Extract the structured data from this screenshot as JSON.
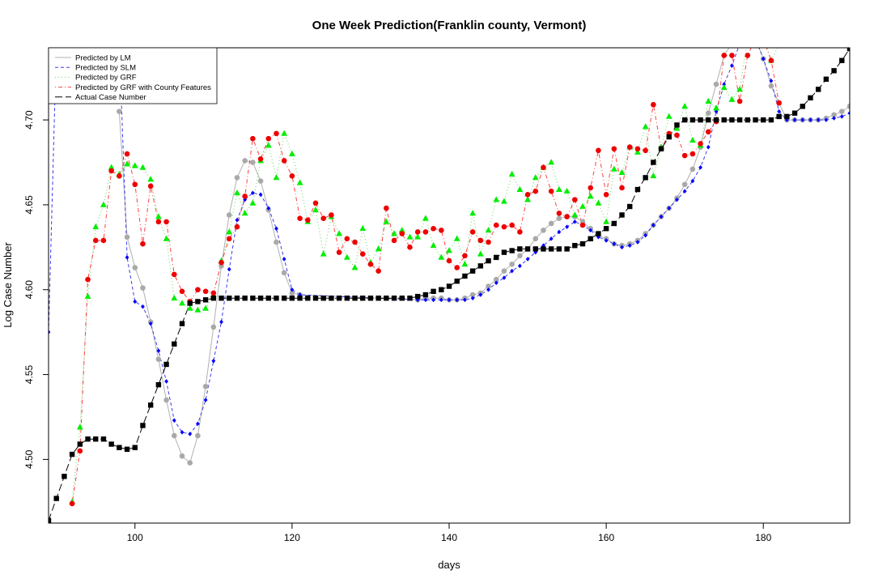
{
  "chart_data": {
    "type": "line",
    "title": "One Week Prediction(Franklin county, Vermont)",
    "xlabel": "days",
    "ylabel": "Log Case Number",
    "xlim": [
      89,
      191
    ],
    "ylim": [
      4.4625,
      4.7425
    ],
    "xticks": [
      100,
      120,
      140,
      160,
      180
    ],
    "yticks": [
      4.5,
      4.55,
      4.6,
      4.65,
      4.7
    ],
    "xtick_labels": [
      "100",
      "120",
      "140",
      "160",
      "180"
    ],
    "ytick_labels": [
      "4.50",
      "4.55",
      "4.60",
      "4.65",
      "4.70"
    ],
    "grid": false,
    "legend_position": "top-left",
    "series": [
      {
        "name": "Predicted by LM",
        "line_color": "#b0b0b0",
        "marker_color": "#a9a9a9",
        "line_style": "solid",
        "marker": "circle",
        "x": [
          98,
          99,
          100,
          101,
          102,
          103,
          104,
          105,
          106,
          107,
          108,
          109,
          110,
          111,
          112,
          113,
          114,
          115,
          116,
          117,
          118,
          119,
          120,
          121,
          136,
          137,
          138,
          139,
          140,
          141,
          142,
          143,
          144,
          145,
          146,
          147,
          148,
          149,
          150,
          151,
          152,
          153,
          154,
          155,
          156,
          157,
          158,
          159,
          160,
          161,
          162,
          163,
          164,
          165,
          166,
          167,
          168,
          169,
          170,
          171,
          172,
          173,
          174,
          175,
          176,
          177,
          178,
          179,
          180,
          181,
          182,
          183,
          184,
          185,
          186,
          187,
          188,
          189,
          190,
          191
        ],
        "y": [
          4.705,
          4.631,
          4.613,
          4.601,
          4.581,
          4.559,
          4.535,
          4.514,
          4.502,
          4.498,
          4.514,
          4.543,
          4.578,
          4.614,
          4.644,
          4.666,
          4.676,
          4.675,
          4.664,
          4.647,
          4.628,
          4.61,
          4.598,
          4.597,
          4.594,
          4.595,
          4.595,
          4.595,
          4.594,
          4.594,
          4.595,
          4.597,
          4.598,
          4.602,
          4.606,
          4.611,
          4.615,
          4.62,
          4.624,
          4.63,
          4.635,
          4.639,
          4.642,
          4.643,
          4.643,
          4.64,
          4.636,
          4.632,
          4.63,
          4.627,
          4.626,
          4.627,
          4.629,
          4.633,
          4.638,
          4.643,
          4.648,
          4.654,
          4.662,
          4.671,
          4.684,
          4.704,
          4.721,
          4.738,
          4.745,
          4.748,
          4.748,
          4.748,
          4.736,
          4.72,
          4.71,
          4.7,
          4.7,
          4.7,
          4.7,
          4.7,
          4.701,
          4.703,
          4.705,
          4.708
        ]
      },
      {
        "name": "Predicted by SLM",
        "line_color": "#3b3bf0",
        "marker_color": "#0000ff",
        "line_style": "dashed",
        "marker": "diamond",
        "x": [
          89,
          90,
          98,
          99,
          100,
          101,
          102,
          103,
          104,
          105,
          106,
          107,
          108,
          109,
          110,
          111,
          112,
          113,
          114,
          115,
          116,
          117,
          118,
          119,
          120,
          121,
          136,
          137,
          138,
          139,
          140,
          141,
          142,
          143,
          144,
          145,
          146,
          147,
          148,
          149,
          150,
          151,
          152,
          153,
          154,
          155,
          156,
          157,
          158,
          159,
          160,
          161,
          162,
          163,
          164,
          165,
          166,
          167,
          168,
          169,
          170,
          171,
          172,
          173,
          174,
          175,
          176,
          177,
          178,
          179,
          180,
          181,
          182,
          183,
          184,
          185,
          186,
          187,
          188,
          189,
          190,
          191
        ],
        "y": [
          4.575,
          4.745,
          4.745,
          4.619,
          4.593,
          4.59,
          4.58,
          4.564,
          4.546,
          4.523,
          4.516,
          4.515,
          4.521,
          4.535,
          4.558,
          4.581,
          4.612,
          4.641,
          4.653,
          4.657,
          4.656,
          4.648,
          4.636,
          4.618,
          4.6,
          4.597,
          4.594,
          4.594,
          4.594,
          4.594,
          4.594,
          4.594,
          4.594,
          4.595,
          4.597,
          4.6,
          4.604,
          4.607,
          4.611,
          4.614,
          4.618,
          4.622,
          4.626,
          4.63,
          4.634,
          4.637,
          4.64,
          4.638,
          4.635,
          4.631,
          4.629,
          4.627,
          4.625,
          4.626,
          4.628,
          4.632,
          4.638,
          4.643,
          4.648,
          4.653,
          4.658,
          4.664,
          4.672,
          4.684,
          4.705,
          4.721,
          4.732,
          4.745,
          4.748,
          4.748,
          4.736,
          4.723,
          4.705,
          4.7,
          4.7,
          4.7,
          4.7,
          4.7,
          4.7,
          4.701,
          4.702,
          4.704
        ]
      },
      {
        "name": "Predicted by GRF",
        "line_color": "#5ed65e",
        "marker_color": "#00ee00",
        "line_style": "dotted",
        "marker": "triangle",
        "x": [
          92,
          93,
          94,
          95,
          96,
          97,
          98,
          99,
          100,
          101,
          102,
          103,
          104,
          105,
          106,
          107,
          108,
          109,
          110,
          111,
          112,
          113,
          114,
          115,
          116,
          117,
          118,
          119,
          120,
          121,
          122,
          123,
          124,
          125,
          126,
          127,
          128,
          129,
          130,
          131,
          132,
          133,
          134,
          135,
          136,
          137,
          138,
          139,
          140,
          141,
          142,
          143,
          144,
          145,
          146,
          147,
          148,
          149,
          150,
          151,
          152,
          153,
          154,
          155,
          156,
          157,
          158,
          159,
          160,
          161,
          162,
          163,
          164,
          165,
          166,
          167,
          168,
          169,
          170,
          171,
          172,
          173,
          174,
          175,
          176,
          177,
          178,
          179,
          180,
          181,
          182,
          183
        ],
        "y": [
          4.475,
          4.519,
          4.596,
          4.637,
          4.65,
          4.672,
          4.668,
          4.674,
          4.673,
          4.672,
          4.665,
          4.643,
          4.63,
          4.595,
          4.592,
          4.589,
          4.588,
          4.589,
          4.597,
          4.617,
          4.634,
          4.657,
          4.645,
          4.651,
          4.676,
          4.685,
          4.666,
          4.692,
          4.68,
          4.663,
          4.64,
          4.647,
          4.621,
          4.643,
          4.633,
          4.619,
          4.613,
          4.636,
          4.616,
          4.624,
          4.64,
          4.633,
          4.635,
          4.631,
          4.631,
          4.642,
          4.626,
          4.619,
          4.623,
          4.63,
          4.615,
          4.645,
          4.621,
          4.635,
          4.653,
          4.652,
          4.668,
          4.659,
          4.653,
          4.666,
          4.672,
          4.675,
          4.659,
          4.658,
          4.644,
          4.649,
          4.655,
          4.651,
          4.64,
          4.671,
          4.669,
          4.684,
          4.681,
          4.696,
          4.667,
          4.684,
          4.702,
          4.695,
          4.708,
          4.688,
          4.685,
          4.711,
          4.707,
          4.719,
          4.712,
          4.718,
          4.748,
          4.748,
          4.748,
          4.735,
          4.744,
          4.745
        ]
      },
      {
        "name": "Predicted by GRF with County Features",
        "line_color": "#ff4040",
        "marker_color": "#ee0000",
        "line_style": "dotdash",
        "marker": "circle",
        "x": [
          92,
          93,
          94,
          95,
          96,
          97,
          98,
          99,
          100,
          101,
          102,
          103,
          104,
          105,
          106,
          107,
          108,
          109,
          110,
          111,
          112,
          113,
          114,
          115,
          116,
          117,
          118,
          119,
          120,
          121,
          122,
          123,
          124,
          125,
          126,
          127,
          128,
          129,
          130,
          131,
          132,
          133,
          134,
          135,
          136,
          137,
          138,
          139,
          140,
          141,
          142,
          143,
          144,
          145,
          146,
          147,
          148,
          149,
          150,
          151,
          152,
          153,
          154,
          155,
          156,
          157,
          158,
          159,
          160,
          161,
          162,
          163,
          164,
          165,
          166,
          167,
          168,
          169,
          170,
          171,
          172,
          173,
          174,
          175,
          176,
          177,
          178,
          179,
          180,
          181,
          182
        ],
        "y": [
          4.474,
          4.505,
          4.606,
          4.629,
          4.629,
          4.67,
          4.667,
          4.68,
          4.662,
          4.627,
          4.661,
          4.64,
          4.64,
          4.609,
          4.599,
          4.593,
          4.6,
          4.599,
          4.598,
          4.616,
          4.63,
          4.637,
          4.655,
          4.689,
          4.677,
          4.689,
          4.692,
          4.676,
          4.667,
          4.642,
          4.641,
          4.651,
          4.642,
          4.644,
          4.622,
          4.63,
          4.628,
          4.621,
          4.615,
          4.611,
          4.648,
          4.629,
          4.633,
          4.625,
          4.634,
          4.634,
          4.636,
          4.635,
          4.617,
          4.613,
          4.62,
          4.634,
          4.629,
          4.628,
          4.638,
          4.637,
          4.638,
          4.634,
          4.656,
          4.658,
          4.672,
          4.658,
          4.645,
          4.643,
          4.653,
          4.638,
          4.66,
          4.682,
          4.656,
          4.683,
          4.66,
          4.684,
          4.683,
          4.682,
          4.709,
          4.683,
          4.692,
          4.691,
          4.679,
          4.68,
          4.686,
          4.693,
          4.699,
          4.738,
          4.738,
          4.711,
          4.738,
          4.748,
          4.748,
          4.735,
          4.71
        ]
      },
      {
        "name": "Actual Case Number",
        "line_color": "#000000",
        "marker_color": "#000000",
        "line_style": "longdash",
        "marker": "square",
        "x": [
          89,
          90,
          91,
          92,
          93,
          94,
          95,
          96,
          97,
          98,
          99,
          100,
          101,
          102,
          103,
          104,
          105,
          106,
          107,
          108,
          109,
          110,
          111,
          112,
          113,
          114,
          115,
          116,
          117,
          118,
          119,
          120,
          121,
          122,
          123,
          124,
          125,
          126,
          127,
          128,
          129,
          130,
          131,
          132,
          133,
          134,
          135,
          136,
          137,
          138,
          139,
          140,
          141,
          142,
          143,
          144,
          145,
          146,
          147,
          148,
          149,
          150,
          151,
          152,
          153,
          154,
          155,
          156,
          157,
          158,
          159,
          160,
          161,
          162,
          163,
          164,
          165,
          166,
          167,
          168,
          169,
          170,
          171,
          172,
          173,
          174,
          175,
          176,
          177,
          178,
          179,
          180,
          181,
          182,
          183,
          184,
          185,
          186,
          187,
          188,
          189,
          190,
          191
        ],
        "y": [
          4.464,
          4.477,
          4.49,
          4.503,
          4.509,
          4.512,
          4.512,
          4.512,
          4.509,
          4.507,
          4.506,
          4.507,
          4.52,
          4.532,
          4.544,
          4.556,
          4.568,
          4.58,
          4.592,
          4.593,
          4.594,
          4.595,
          4.595,
          4.595,
          4.595,
          4.595,
          4.595,
          4.595,
          4.595,
          4.595,
          4.595,
          4.595,
          4.595,
          4.595,
          4.595,
          4.595,
          4.595,
          4.595,
          4.595,
          4.595,
          4.595,
          4.595,
          4.595,
          4.595,
          4.595,
          4.595,
          4.595,
          4.596,
          4.597,
          4.599,
          4.6,
          4.602,
          4.605,
          4.608,
          4.611,
          4.614,
          4.617,
          4.619,
          4.622,
          4.623,
          4.624,
          4.624,
          4.624,
          4.624,
          4.624,
          4.624,
          4.624,
          4.626,
          4.627,
          4.63,
          4.633,
          4.636,
          4.639,
          4.644,
          4.649,
          4.659,
          4.666,
          4.675,
          4.683,
          4.69,
          4.697,
          4.7,
          4.7,
          4.7,
          4.7,
          4.7,
          4.7,
          4.7,
          4.7,
          4.7,
          4.7,
          4.7,
          4.7,
          4.702,
          4.702,
          4.704,
          4.708,
          4.713,
          4.718,
          4.724,
          4.729,
          4.735,
          4.742
        ]
      }
    ]
  }
}
